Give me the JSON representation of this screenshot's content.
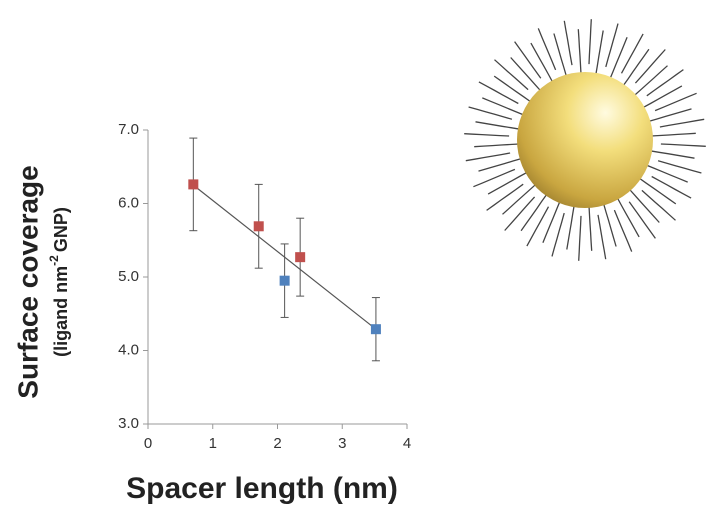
{
  "chart_data": {
    "type": "scatter",
    "x_label": "Spacer length (nm)",
    "y_label": "Surface coverage",
    "y_label_sub": {
      "before": "(ligand nm",
      "sup": "-2",
      "after": "GNP)"
    },
    "xlim": [
      0,
      4
    ],
    "xticks": [
      0,
      1,
      2,
      3,
      4
    ],
    "ylim": [
      3,
      7
    ],
    "yticks": [
      {
        "value": 3,
        "label": "3.0"
      },
      {
        "value": 4,
        "label": "4.0"
      },
      {
        "value": 5,
        "label": "5.0"
      },
      {
        "value": 6,
        "label": "6.0"
      },
      {
        "value": 7,
        "label": "7.0"
      }
    ],
    "series": [
      {
        "color": "#c0504d",
        "x": [
          0.7,
          1.71,
          2.35
        ],
        "values": [
          6.26,
          5.69,
          5.27
        ],
        "errors": [
          0.63,
          0.57,
          0.53
        ]
      },
      {
        "color": "#4f81bd",
        "x": [
          2.11,
          3.52
        ],
        "values": [
          4.95,
          4.29
        ],
        "errors": [
          0.5,
          0.43
        ]
      }
    ],
    "trendline": {
      "x": [
        0.7,
        3.52
      ],
      "values": [
        6.25,
        4.29
      ],
      "color": "#555555"
    }
  }
}
